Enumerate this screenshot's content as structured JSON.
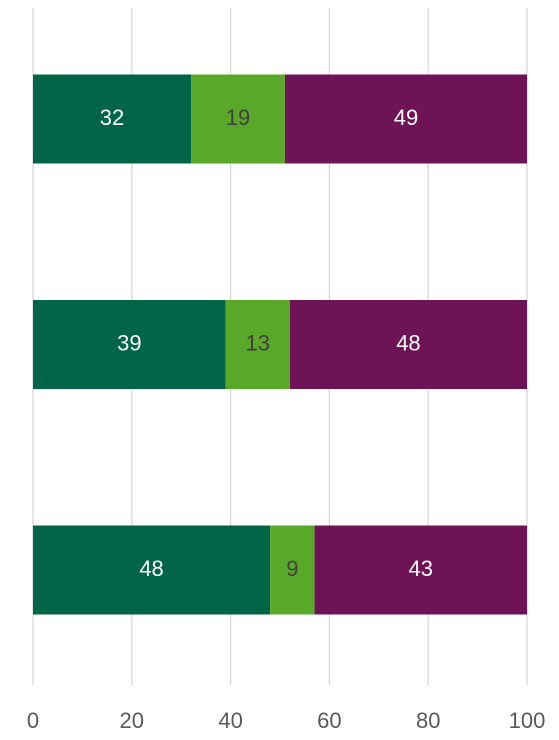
{
  "chart_data": {
    "type": "stacked_bar_horizontal",
    "categories": [
      null,
      null,
      null
    ],
    "series": [
      {
        "color": "#006446",
        "label_color": "#ffffff",
        "values": [
          32,
          39,
          48
        ]
      },
      {
        "color": "#5aa82a",
        "label_color": "#404040",
        "values": [
          19,
          13,
          9
        ]
      },
      {
        "color": "#6e1456",
        "label_color": "#ffffff",
        "values": [
          49,
          48,
          43
        ]
      }
    ],
    "xlim": [
      0,
      100
    ],
    "xticks": [
      0,
      20,
      40,
      60,
      80,
      100
    ],
    "grid": true
  }
}
